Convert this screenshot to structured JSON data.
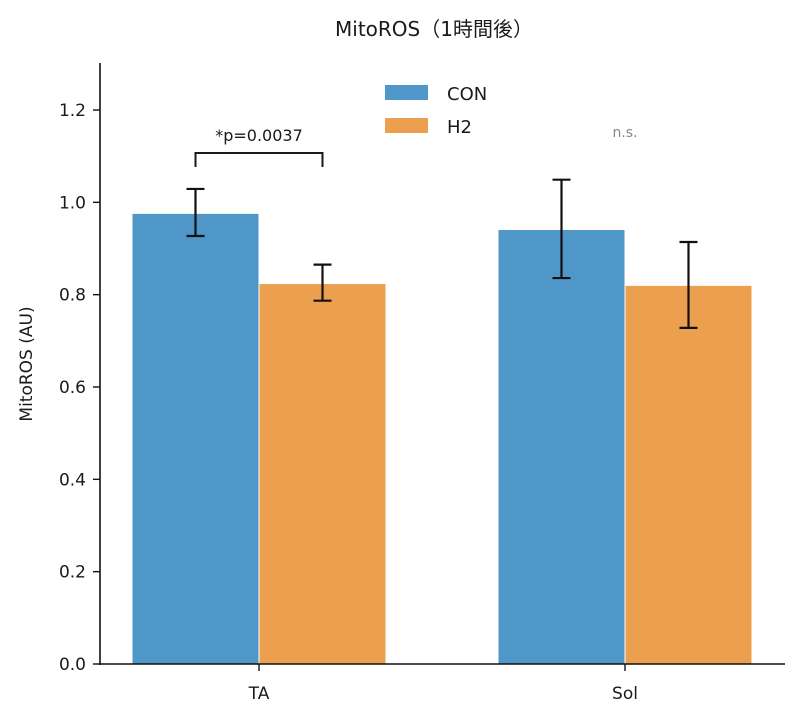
{
  "chart_data": {
    "type": "bar",
    "title": "MitoROS（1時間後）",
    "xlabel": "",
    "ylabel": "MitoROS (AU)",
    "categories": [
      "TA",
      "Sol"
    ],
    "ylim": [
      0,
      1.3
    ],
    "yticks": [
      "0.0",
      "0.2",
      "0.4",
      "0.6",
      "0.8",
      "1.0",
      "1.2"
    ],
    "ytick_values": [
      0,
      0.2,
      0.4,
      0.6,
      0.8,
      1.0,
      1.2
    ],
    "grid": false,
    "legend_position": "top-center",
    "series": [
      {
        "name": "CON",
        "color": "#4f96c9",
        "values": [
          0.975,
          0.94
        ],
        "error_low": [
          0.927,
          0.836
        ],
        "error_high": [
          1.029,
          1.049
        ]
      },
      {
        "name": "H2",
        "color": "#eca04f",
        "values": [
          0.823,
          0.819
        ],
        "error_low": [
          0.787,
          0.728
        ],
        "error_high": [
          0.865,
          0.914
        ]
      }
    ],
    "annotations": [
      {
        "category": "TA",
        "text": "*p=0.0037",
        "type": "bracket",
        "color": "#1a1a1a"
      },
      {
        "category": "Sol",
        "text": "n.s.",
        "type": "label",
        "color": "#888888"
      }
    ]
  }
}
